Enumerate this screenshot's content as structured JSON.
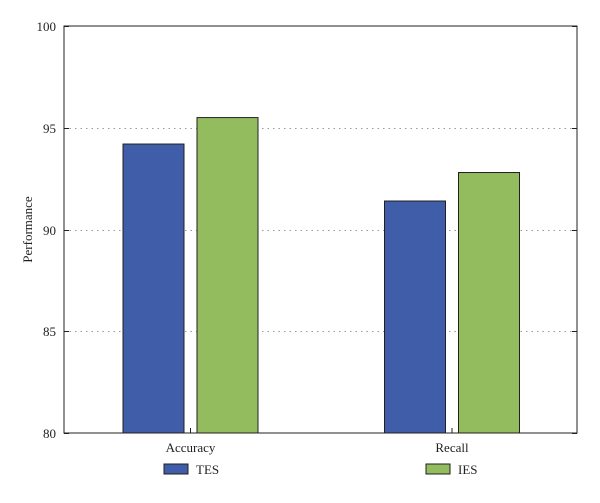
{
  "chart_data": {
    "type": "bar",
    "title": "",
    "xlabel": "",
    "ylabel": "Performance",
    "categories": [
      "Accuracy",
      "Recall"
    ],
    "series": [
      {
        "name": "TES",
        "color": "#3f5da9",
        "values": [
          94.2,
          91.4
        ]
      },
      {
        "name": "IES",
        "color": "#92bc5e",
        "values": [
          95.5,
          92.8
        ]
      }
    ],
    "ylim": [
      80,
      100
    ],
    "yticks": [
      80,
      85,
      90,
      95,
      100
    ],
    "grid": true,
    "legend_position": "bottom"
  }
}
